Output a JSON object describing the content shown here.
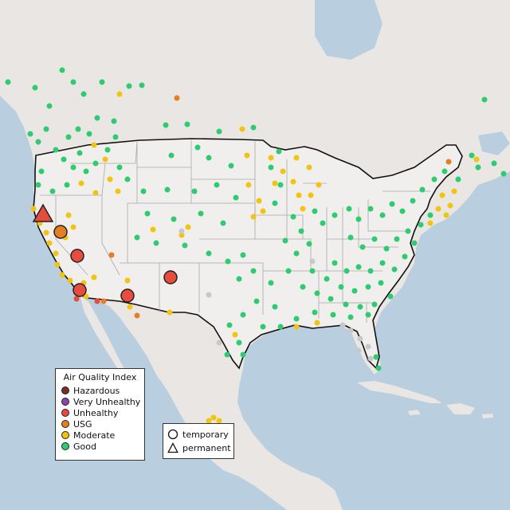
{
  "map": {
    "colors": {
      "ocean": "#b9cfe0",
      "land": "#eae6e3",
      "us_land": "#f1efed",
      "state_border": "#a8a8a8",
      "country_border": "#111111"
    },
    "monitor_sites": {
      "good_color": "#2ecc71",
      "moderate_color": "#f1c40f",
      "usg_color": "#e67e22",
      "unhealthy_color": "#e74c3c",
      "no_data_color": "#c5c9cc"
    }
  },
  "aqi_legend": {
    "title": "Air Quality Index",
    "items": [
      {
        "label": "Hazardous",
        "color": "#7b2d26"
      },
      {
        "label": "Very Unhealthy",
        "color": "#8e44ad"
      },
      {
        "label": "Unhealthy",
        "color": "#e74c3c"
      },
      {
        "label": "USG",
        "color": "#e67e22"
      },
      {
        "label": "Moderate",
        "color": "#f1c40f"
      },
      {
        "label": "Good",
        "color": "#2ecc71"
      }
    ]
  },
  "type_legend": {
    "items": [
      {
        "label": "temporary",
        "symbol": "circle-icon"
      },
      {
        "label": "permanent",
        "symbol": "triangle-icon"
      }
    ]
  }
}
